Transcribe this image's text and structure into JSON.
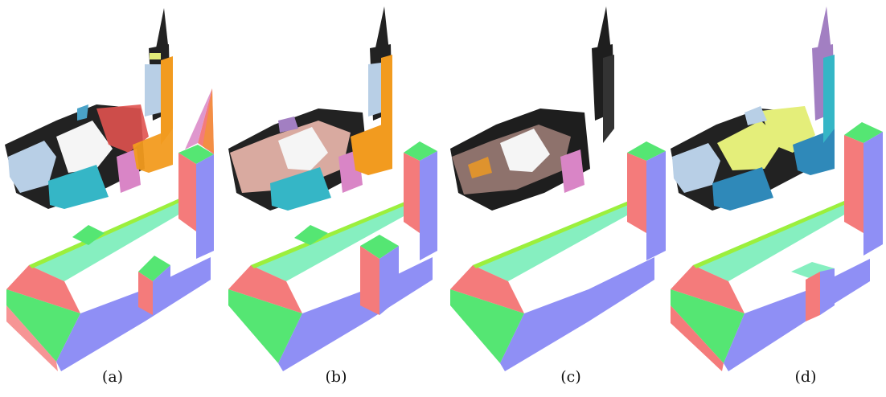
{
  "captions": [
    "(a)",
    "(b)",
    "(c)",
    "(d)"
  ],
  "panels": [
    {
      "id": "a",
      "variant": "full-with-tower-spire-and-transept-wings"
    },
    {
      "id": "b",
      "variant": "block-tower-with-transept-wings"
    },
    {
      "id": "c",
      "variant": "block-tower-no-wings"
    },
    {
      "id": "d",
      "variant": "block-tower-with-side-chapel"
    }
  ],
  "colors": {
    "face_top": "#86efc0",
    "face_green": "#55e673",
    "face_red": "#f47b7b",
    "face_blue": "#8f8ff5",
    "ridge_green": "#9cef3c",
    "pointcloud_dark": "#222222",
    "pc_orange": "#f29b1f",
    "pc_lightblue": "#b8cfe6",
    "pc_teal": "#35b6c6",
    "pc_magenta": "#d985c6",
    "pc_salmon": "#d9aaa0",
    "pc_red": "#e0524f",
    "pc_yellow": "#e4ee7a",
    "pc_purple": "#a27fc2",
    "pc_blue": "#2f89b9"
  }
}
